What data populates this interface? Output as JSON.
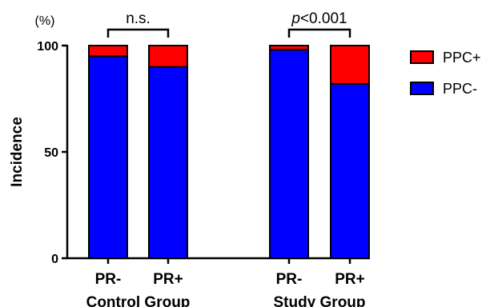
{
  "chart_data": {
    "type": "bar",
    "stacked": true,
    "categories": [
      "PR-",
      "PR+",
      "PR-",
      "PR+"
    ],
    "groups": [
      {
        "label": "Control Group",
        "categories": [
          "PR-",
          "PR+"
        ]
      },
      {
        "label": "Study Group",
        "categories": [
          "PR-",
          "PR+"
        ]
      }
    ],
    "series": [
      {
        "name": "PPC-",
        "color": "#0000ff",
        "values": [
          95,
          90,
          98,
          82
        ]
      },
      {
        "name": "PPC+",
        "color": "#ff0000",
        "values": [
          5,
          10,
          2,
          18
        ]
      }
    ],
    "ylabel": "Incidence",
    "yunit": "(%)",
    "ylim": [
      0,
      100
    ],
    "yticks": [
      "0",
      "50",
      "100"
    ],
    "annotations": [
      {
        "text_prefix": "",
        "text": "n.s.",
        "between": [
          0,
          1
        ]
      },
      {
        "text_prefix": "p",
        "text": "<0.001",
        "between": [
          2,
          3
        ]
      }
    ],
    "legend": {
      "position": "right",
      "order": [
        "PPC+",
        "PPC-"
      ]
    },
    "grid": false
  }
}
